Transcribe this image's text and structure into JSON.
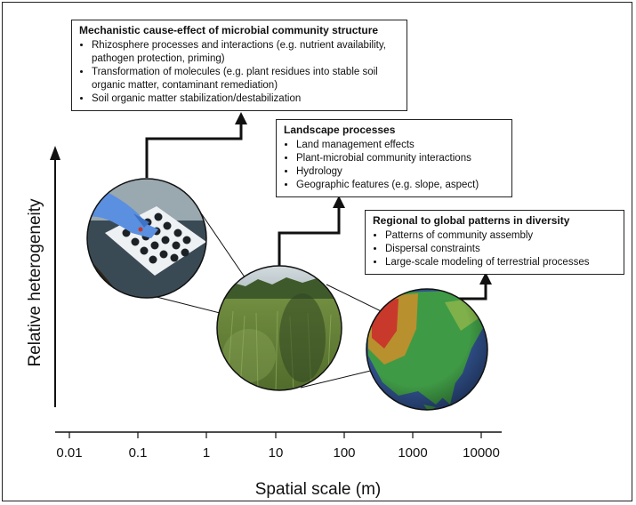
{
  "axes": {
    "ylabel": "Relative heterogeneity",
    "xlabel": "Spatial scale (m)",
    "ticks": [
      "0.01",
      "0.1",
      "1",
      "10",
      "100",
      "1000",
      "10000"
    ]
  },
  "boxes": {
    "mechanistic": {
      "title": "Mechanistic cause-effect of microbial community structure",
      "items": [
        "Rhizosphere processes and interactions (e.g. nutrient availability, pathogen protection, priming)",
        "Transformation of molecules (e.g. plant residues into stable soil organic matter, contaminant remediation)",
        "Soil organic matter stabilization/destabilization"
      ]
    },
    "landscape": {
      "title": "Landscape processes",
      "items": [
        "Land management effects",
        "Plant-microbial community interactions",
        "Hydrology",
        "Geographic features (e.g. slope, aspect)"
      ]
    },
    "regional": {
      "title": "Regional to global patterns in diversity",
      "items": [
        "Patterns of community assembly",
        "Dispersal constraints",
        "Large-scale modeling of terrestrial processes"
      ]
    }
  },
  "colors": {
    "lab_bg": "#3a4a55",
    "glove": "#5b8fe0",
    "field_grass": "#6f8f3c",
    "field_sky": "#c9d3d8",
    "map_ocean": "#2f4f8a",
    "map_land": "#3f9a45",
    "map_mountain": "#c8392b"
  }
}
